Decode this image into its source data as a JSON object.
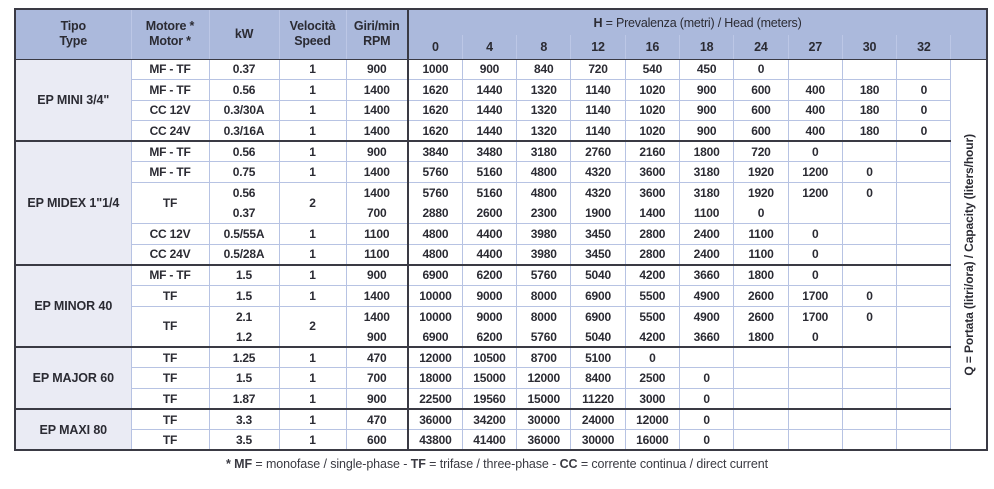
{
  "colors": {
    "hbg": "#abb9dc",
    "hline": "#bcc7e6",
    "gbg": "#eaebf4",
    "line": "#b7c3e3",
    "dark": "#3a3a44",
    "text": "#2b2b33"
  },
  "table": {
    "header": {
      "left_columns": [
        {
          "line1": "Tipo",
          "line2": "Type"
        },
        {
          "line1": "Motore *",
          "line2": "Motor *"
        },
        {
          "line1": "kW",
          "line2": ""
        },
        {
          "line1": "Velocità",
          "line2": "Speed"
        },
        {
          "line1": "Giri/min",
          "line2": "RPM"
        }
      ],
      "h_bold": "H",
      "h_rest": " = Prevalenza (metri) / Head (meters)",
      "head_values": [
        "0",
        "4",
        "8",
        "12",
        "16",
        "18",
        "24",
        "27",
        "30",
        "32"
      ]
    },
    "q_label": {
      "bold": "Q",
      "rest": " = Portata (litri/ora) / Capacity (liters/hour)"
    },
    "groups": [
      {
        "name": "EP MINI 3/4\"",
        "rows": [
          {
            "motor": "MF - TF",
            "kw": [
              "0.37"
            ],
            "speed": "1",
            "rpm": [
              "900"
            ],
            "values": [
              [
                "1000",
                "900",
                "840",
                "720",
                "540",
                "450",
                "0",
                "",
                "",
                ""
              ]
            ]
          },
          {
            "motor": "MF - TF",
            "kw": [
              "0.56"
            ],
            "speed": "1",
            "rpm": [
              "1400"
            ],
            "values": [
              [
                "1620",
                "1440",
                "1320",
                "1140",
                "1020",
                "900",
                "600",
                "400",
                "180",
                "0"
              ]
            ]
          },
          {
            "motor": "CC 12V",
            "kw": [
              "0.3/30A"
            ],
            "speed": "1",
            "rpm": [
              "1400"
            ],
            "values": [
              [
                "1620",
                "1440",
                "1320",
                "1140",
                "1020",
                "900",
                "600",
                "400",
                "180",
                "0"
              ]
            ]
          },
          {
            "motor": "CC 24V",
            "kw": [
              "0.3/16A"
            ],
            "speed": "1",
            "rpm": [
              "1400"
            ],
            "values": [
              [
                "1620",
                "1440",
                "1320",
                "1140",
                "1020",
                "900",
                "600",
                "400",
                "180",
                "0"
              ]
            ]
          }
        ]
      },
      {
        "name": "EP MIDEX 1\"1/4",
        "rows": [
          {
            "motor": "MF - TF",
            "kw": [
              "0.56"
            ],
            "speed": "1",
            "rpm": [
              "900"
            ],
            "values": [
              [
                "3840",
                "3480",
                "3180",
                "2760",
                "2160",
                "1800",
                "720",
                "0",
                "",
                ""
              ]
            ]
          },
          {
            "motor": "MF - TF",
            "kw": [
              "0.75"
            ],
            "speed": "1",
            "rpm": [
              "1400"
            ],
            "values": [
              [
                "5760",
                "5160",
                "4800",
                "4320",
                "3600",
                "3180",
                "1920",
                "1200",
                "0",
                ""
              ]
            ]
          },
          {
            "motor": "TF",
            "kw": [
              "0.56",
              "0.37"
            ],
            "speed": "2",
            "rpm": [
              "1400",
              "700"
            ],
            "values": [
              [
                "5760",
                "5160",
                "4800",
                "4320",
                "3600",
                "3180",
                "1920",
                "1200",
                "0",
                ""
              ],
              [
                "2880",
                "2600",
                "2300",
                "1900",
                "1400",
                "1100",
                "0",
                "",
                "",
                ""
              ]
            ]
          },
          {
            "motor": "CC 12V",
            "kw": [
              "0.5/55A"
            ],
            "speed": "1",
            "rpm": [
              "1100"
            ],
            "values": [
              [
                "4800",
                "4400",
                "3980",
                "3450",
                "2800",
                "2400",
                "1100",
                "0",
                "",
                ""
              ]
            ]
          },
          {
            "motor": "CC 24V",
            "kw": [
              "0.5/28A"
            ],
            "speed": "1",
            "rpm": [
              "1100"
            ],
            "values": [
              [
                "4800",
                "4400",
                "3980",
                "3450",
                "2800",
                "2400",
                "1100",
                "0",
                "",
                ""
              ]
            ]
          }
        ]
      },
      {
        "name": "EP MINOR 40",
        "rows": [
          {
            "motor": "MF - TF",
            "kw": [
              "1.5"
            ],
            "speed": "1",
            "rpm": [
              "900"
            ],
            "values": [
              [
                "6900",
                "6200",
                "5760",
                "5040",
                "4200",
                "3660",
                "1800",
                "0",
                "",
                ""
              ]
            ]
          },
          {
            "motor": "TF",
            "kw": [
              "1.5"
            ],
            "speed": "1",
            "rpm": [
              "1400"
            ],
            "values": [
              [
                "10000",
                "9000",
                "8000",
                "6900",
                "5500",
                "4900",
                "2600",
                "1700",
                "0",
                ""
              ]
            ]
          },
          {
            "motor": "TF",
            "kw": [
              "2.1",
              "1.2"
            ],
            "speed": "2",
            "rpm": [
              "1400",
              "900"
            ],
            "values": [
              [
                "10000",
                "9000",
                "8000",
                "6900",
                "5500",
                "4900",
                "2600",
                "1700",
                "0",
                ""
              ],
              [
                "6900",
                "6200",
                "5760",
                "5040",
                "4200",
                "3660",
                "1800",
                "0",
                "",
                ""
              ]
            ]
          }
        ]
      },
      {
        "name": "EP MAJOR 60",
        "rows": [
          {
            "motor": "TF",
            "kw": [
              "1.25"
            ],
            "speed": "1",
            "rpm": [
              "470"
            ],
            "values": [
              [
                "12000",
                "10500",
                "8700",
                "5100",
                "0",
                "",
                "",
                "",
                "",
                ""
              ]
            ]
          },
          {
            "motor": "TF",
            "kw": [
              "1.5"
            ],
            "speed": "1",
            "rpm": [
              "700"
            ],
            "values": [
              [
                "18000",
                "15000",
                "12000",
                "8400",
                "2500",
                "0",
                "",
                "",
                "",
                ""
              ]
            ]
          },
          {
            "motor": "TF",
            "kw": [
              "1.87"
            ],
            "speed": "1",
            "rpm": [
              "900"
            ],
            "values": [
              [
                "22500",
                "19560",
                "15000",
                "11220",
                "3000",
                "0",
                "",
                "",
                "",
                ""
              ]
            ]
          }
        ]
      },
      {
        "name": "EP MAXI 80",
        "rows": [
          {
            "motor": "TF",
            "kw": [
              "3.3"
            ],
            "speed": "1",
            "rpm": [
              "470"
            ],
            "values": [
              [
                "36000",
                "34200",
                "30000",
                "24000",
                "12000",
                "0",
                "",
                "",
                "",
                ""
              ]
            ]
          },
          {
            "motor": "TF",
            "kw": [
              "3.5"
            ],
            "speed": "1",
            "rpm": [
              "600"
            ],
            "values": [
              [
                "43800",
                "41400",
                "36000",
                "30000",
                "16000",
                "0",
                "",
                "",
                "",
                ""
              ]
            ]
          }
        ]
      }
    ]
  },
  "footnote": {
    "segments": [
      {
        "text": "* MF",
        "bold": true
      },
      {
        "text": " = monofase / single-phase - ",
        "bold": false
      },
      {
        "text": "TF",
        "bold": true
      },
      {
        "text": " = trifase / three-phase - ",
        "bold": false
      },
      {
        "text": "CC",
        "bold": true
      },
      {
        "text": " = corrente continua / direct current",
        "bold": false
      }
    ]
  }
}
